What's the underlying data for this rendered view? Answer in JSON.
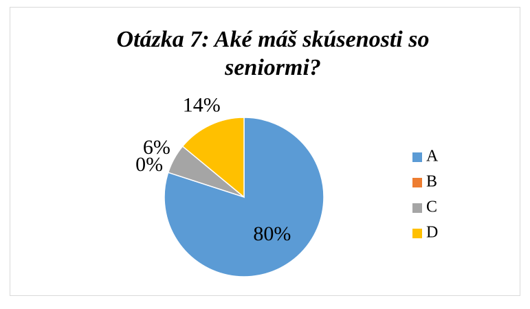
{
  "chart_data": {
    "type": "pie",
    "title": "Otázka 7: Aké máš skúsenosti so seniormi?",
    "title_lines": [
      "Otázka 7: Aké máš skúsenosti so",
      "seniormi?"
    ],
    "categories": [
      "A",
      "B",
      "C",
      "D"
    ],
    "values": [
      80,
      0,
      6,
      14
    ],
    "value_labels": [
      "80%",
      "0%",
      "6%",
      "14%"
    ],
    "colors": [
      "#5b9bd5",
      "#ed7d31",
      "#a5a5a5",
      "#ffc000"
    ],
    "legend": "right"
  }
}
